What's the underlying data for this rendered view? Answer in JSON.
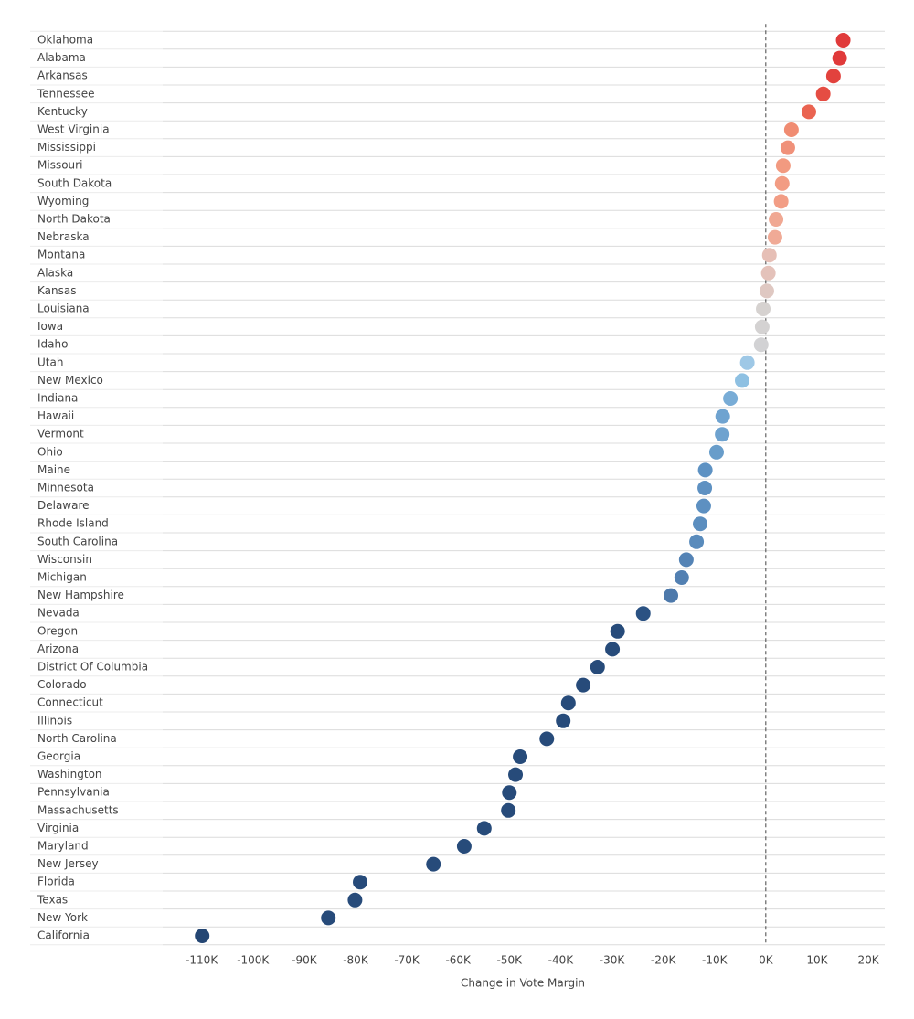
{
  "chart_data": {
    "type": "dot",
    "x_label": "Change in Vote Margin",
    "categories": [
      "Oklahoma",
      "Alabama",
      "Arkansas",
      "Tennessee",
      "Kentucky",
      "West Virginia",
      "Mississippi",
      "Missouri",
      "South Dakota",
      "Wyoming",
      "North Dakota",
      "Nebraska",
      "Montana",
      "Alaska",
      "Kansas",
      "Louisiana",
      "Iowa",
      "Idaho",
      "Utah",
      "New Mexico",
      "Indiana",
      "Hawaii",
      "Vermont",
      "Ohio",
      "Maine",
      "Minnesota",
      "Delaware",
      "Rhode Island",
      "South Carolina",
      "Wisconsin",
      "Michigan",
      "New Hampshire",
      "Nevada",
      "Oregon",
      "Arizona",
      "District Of Columbia",
      "Colorado",
      "Connecticut",
      "Illinois",
      "North Carolina",
      "Georgia",
      "Washington",
      "Pennsylvania",
      "Massachusetts",
      "Virginia",
      "Maryland",
      "New Jersey",
      "Florida",
      "Texas",
      "New York",
      "California"
    ],
    "values": [
      15.1,
      14.4,
      13.2,
      11.2,
      8.4,
      5.0,
      4.3,
      3.4,
      3.2,
      3.0,
      2.0,
      1.8,
      0.7,
      0.5,
      0.2,
      -0.5,
      -0.7,
      -0.9,
      -3.6,
      -4.6,
      -6.9,
      -8.4,
      -8.5,
      -9.6,
      -11.8,
      -11.9,
      -12.1,
      -12.8,
      -13.5,
      -15.5,
      -16.4,
      -18.5,
      -23.9,
      -28.9,
      -29.9,
      -32.8,
      -35.6,
      -38.5,
      -39.5,
      -42.7,
      -47.9,
      -48.8,
      -50.0,
      -50.2,
      -54.9,
      -58.8,
      -64.8,
      -79.1,
      -80.1,
      -85.3,
      -109.9
    ],
    "colors": [
      "#e03a3a",
      "#e03a3a",
      "#e2423d",
      "#e54d43",
      "#ea6451",
      "#f08c72",
      "#f0917a",
      "#f29a80",
      "#f29c83",
      "#f29d85",
      "#f0a893",
      "#f0aa96",
      "#e6bfb6",
      "#e4c2ba",
      "#dfc8c2",
      "#d6d2d0",
      "#d4d2d2",
      "#d2d2d4",
      "#9ec8e6",
      "#8ec0e2",
      "#78acd6",
      "#6fa3d0",
      "#6ea2cf",
      "#689dca",
      "#5e92c3",
      "#5e91c2",
      "#5d90c1",
      "#5b8ebf",
      "#598bbc",
      "#5483b5",
      "#5280b2",
      "#4d79ab",
      "#2b5283",
      "#274b7a",
      "#274b7a",
      "#274b7a",
      "#274b7a",
      "#274b7a",
      "#274b7a",
      "#274b7a",
      "#274b7a",
      "#274b7a",
      "#274b7a",
      "#274b7a",
      "#274b7a",
      "#274b7a",
      "#274b7a",
      "#274b7a",
      "#274b7a",
      "#274b7a",
      "#244673"
    ],
    "xlim": [
      -117.6,
      23.2
    ],
    "xticks": [
      {
        "value": -110,
        "label": "-110K"
      },
      {
        "value": -100,
        "label": "-100K"
      },
      {
        "value": -90,
        "label": "-90K"
      },
      {
        "value": -80,
        "label": "-80K"
      },
      {
        "value": -70,
        "label": "-70K"
      },
      {
        "value": -60,
        "label": "-60K"
      },
      {
        "value": -50,
        "label": "-50K"
      },
      {
        "value": -40,
        "label": "-40K"
      },
      {
        "value": -30,
        "label": "-30K"
      },
      {
        "value": -20,
        "label": "-20K"
      },
      {
        "value": -10,
        "label": "-10K"
      },
      {
        "value": 0,
        "label": "0K"
      },
      {
        "value": 10,
        "label": "10K"
      },
      {
        "value": 20,
        "label": "20K"
      }
    ],
    "zero_line": true
  }
}
